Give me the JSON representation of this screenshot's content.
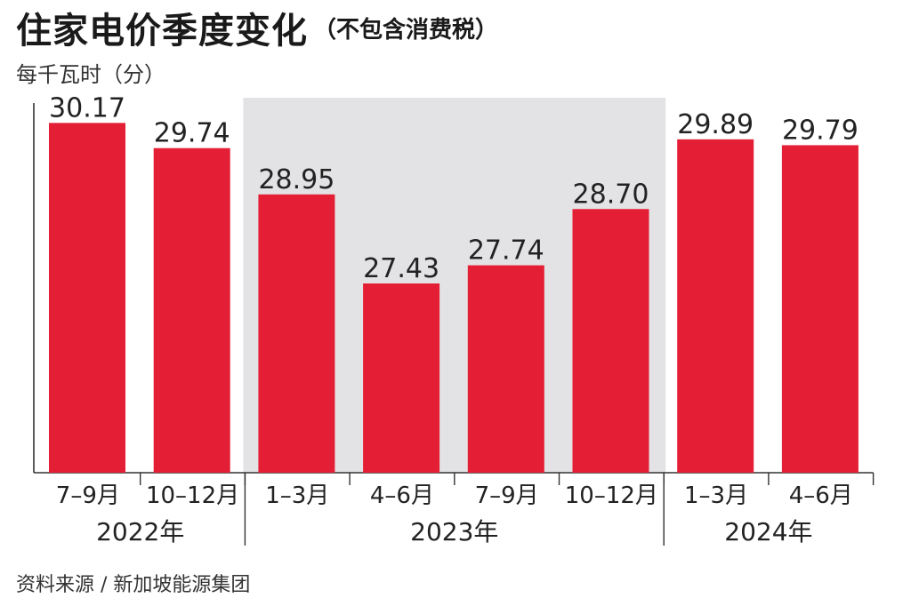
{
  "title": {
    "main": "住家电价季度变化",
    "sub": "（不包含消费税）"
  },
  "unit_label": "每千瓦时（分）",
  "source": "资料来源 / 新加坡能源集团",
  "colors": {
    "bar": "#e41f35",
    "highlight_band": "#e3e3e5",
    "axis": "#333333",
    "text": "#222222"
  },
  "chart_data": {
    "type": "bar",
    "categories": [
      "7–9月",
      "10–12月",
      "1–3月",
      "4–6月",
      "7–9月",
      "10–12月",
      "1–3月",
      "4–6月"
    ],
    "values": [
      30.17,
      29.74,
      28.95,
      27.43,
      27.74,
      28.7,
      29.89,
      29.79
    ],
    "value_labels": [
      "30.17",
      "29.74",
      "28.95",
      "27.43",
      "27.74",
      "28.70",
      "29.89",
      "29.79"
    ],
    "groups": [
      {
        "label": "2022年",
        "start": 0,
        "end": 1
      },
      {
        "label": "2023年",
        "start": 2,
        "end": 5,
        "highlighted": true
      },
      {
        "label": "2024年",
        "start": 6,
        "end": 7
      }
    ],
    "ylim": [
      24.2,
      30.6
    ],
    "grid": false
  }
}
